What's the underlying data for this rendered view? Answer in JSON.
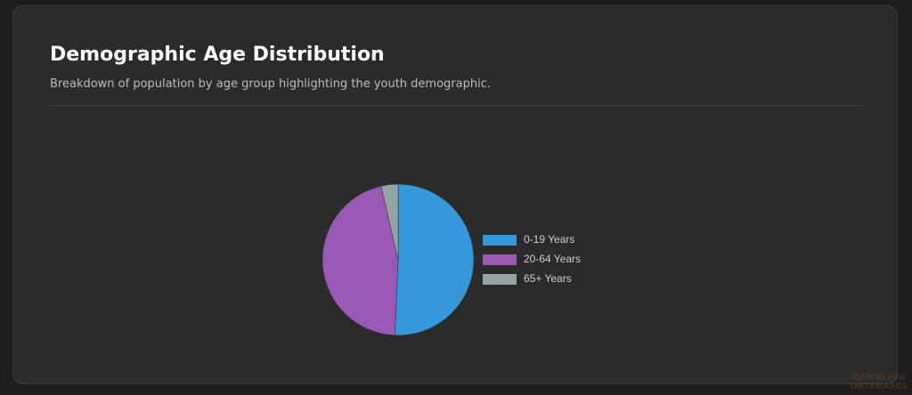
{
  "chart_data": {
    "type": "pie",
    "title": "Demographic Age Distribution",
    "subtitle": "Breakdown of population by age group highlighting the youth demographic.",
    "categories": [
      "0-19 Years",
      "20-64 Years",
      "65+ Years"
    ],
    "values": [
      50.7,
      45.7,
      3.6
    ],
    "colors": [
      "#3498db",
      "#9b59b6",
      "#95a5a6"
    ],
    "legend": "right"
  },
  "watermark": "GAMBLING DATABASES"
}
